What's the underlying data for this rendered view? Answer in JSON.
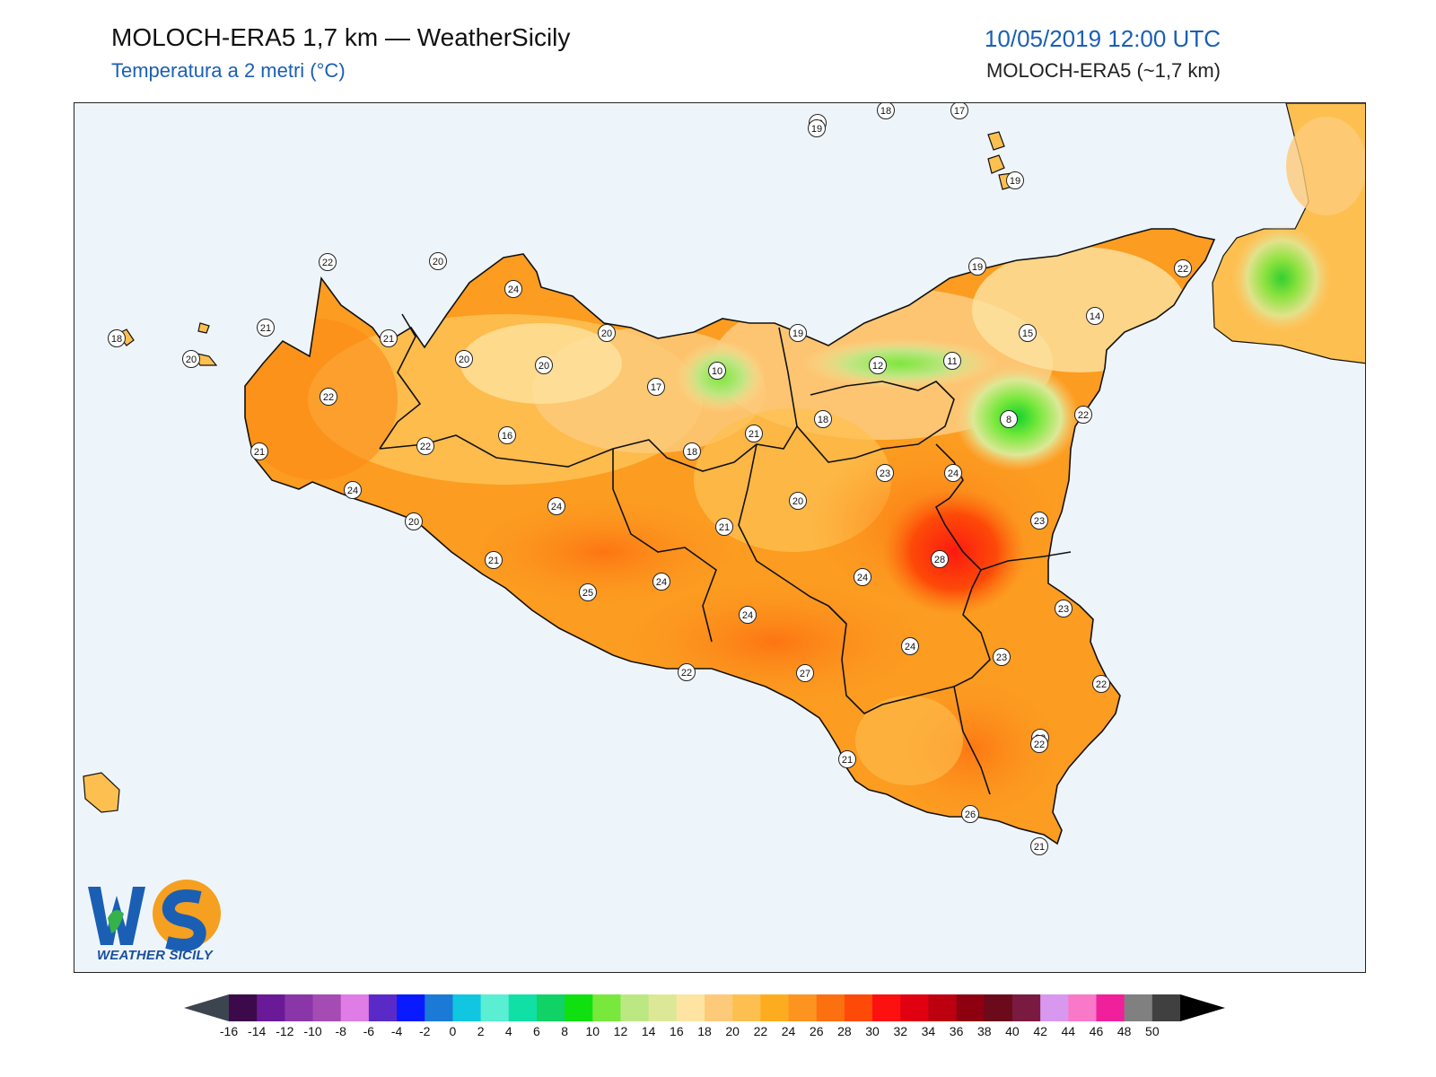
{
  "header": {
    "title": "MOLOCH-ERA5 1,7 km — WeatherSicily",
    "subtitle": "Temperatura a 2 metri (°C)",
    "datetime": "10/05/2019 12:00 UTC",
    "model": "MOLOCH-ERA5 (~1,7 km)"
  },
  "logo": {
    "text": "WEATHER SICILY",
    "letters": "WS"
  },
  "colors": {
    "sea": "#eef5fa",
    "land_base": "#fbb04a",
    "border": "#111111"
  },
  "stations": [
    {
      "label": "22"
    },
    {
      "label": "20"
    },
    {
      "label": "24"
    },
    {
      "label": "21"
    },
    {
      "label": "21"
    },
    {
      "label": "18"
    },
    {
      "label": "20"
    },
    {
      "label": "20"
    },
    {
      "label": "20"
    },
    {
      "label": "22"
    },
    {
      "label": "20"
    },
    {
      "label": "16"
    },
    {
      "label": "21"
    },
    {
      "label": "22"
    },
    {
      "label": "24"
    },
    {
      "label": "20"
    },
    {
      "label": "21"
    },
    {
      "label": "24"
    },
    {
      "label": "25"
    },
    {
      "label": "24"
    },
    {
      "label": "22"
    },
    {
      "label": "17"
    },
    {
      "label": "10"
    },
    {
      "label": "20"
    },
    {
      "label": "18"
    },
    {
      "label": "21"
    },
    {
      "label": "21"
    },
    {
      "label": "24"
    },
    {
      "label": "27"
    },
    {
      "label": "19"
    },
    {
      "label": "18"
    },
    {
      "label": "20"
    },
    {
      "label": "24"
    },
    {
      "label": "12"
    },
    {
      "label": "11"
    },
    {
      "label": "23"
    },
    {
      "label": "24"
    },
    {
      "label": "28"
    },
    {
      "label": "24"
    },
    {
      "label": "23"
    },
    {
      "label": "22"
    },
    {
      "label": "21"
    },
    {
      "label": "26"
    },
    {
      "label": "19"
    },
    {
      "label": "18"
    },
    {
      "label": "17"
    },
    {
      "label": "19"
    },
    {
      "label": "19"
    },
    {
      "label": "15"
    },
    {
      "label": "14"
    },
    {
      "label": "22"
    },
    {
      "label": "8"
    },
    {
      "label": "22"
    },
    {
      "label": "23"
    },
    {
      "label": "23"
    },
    {
      "label": "22"
    },
    {
      "label": "22"
    },
    {
      "label": "21"
    }
  ],
  "colorbar": {
    "ticks": [
      "-16",
      "-14",
      "-12",
      "-10",
      "-8",
      "-6",
      "-4",
      "-2",
      "0",
      "2",
      "4",
      "6",
      "8",
      "10",
      "12",
      "14",
      "16",
      "18",
      "20",
      "22",
      "24",
      "26",
      "28",
      "30",
      "32",
      "34",
      "36",
      "38",
      "40",
      "42",
      "44",
      "46",
      "48",
      "50"
    ],
    "colors": [
      "#3c0a4a",
      "#6a1a96",
      "#8a36a8",
      "#a54cb4",
      "#e07ce6",
      "#5a2ac8",
      "#0a1aff",
      "#1a7ad6",
      "#10c6e0",
      "#5aeed2",
      "#10e0a6",
      "#10d266",
      "#10e010",
      "#78e83c",
      "#bce884",
      "#dde896",
      "#fde4a2",
      "#fdca7a",
      "#fdc050",
      "#fdac20",
      "#fd9420",
      "#fd7010",
      "#fd4a08",
      "#fd1010",
      "#e00010",
      "#bc0010",
      "#8c0010",
      "#6a0a1a",
      "#7a1a40",
      "#d898f0",
      "#fa78c8",
      "#f0209a",
      "#808080",
      "#404040"
    ]
  }
}
